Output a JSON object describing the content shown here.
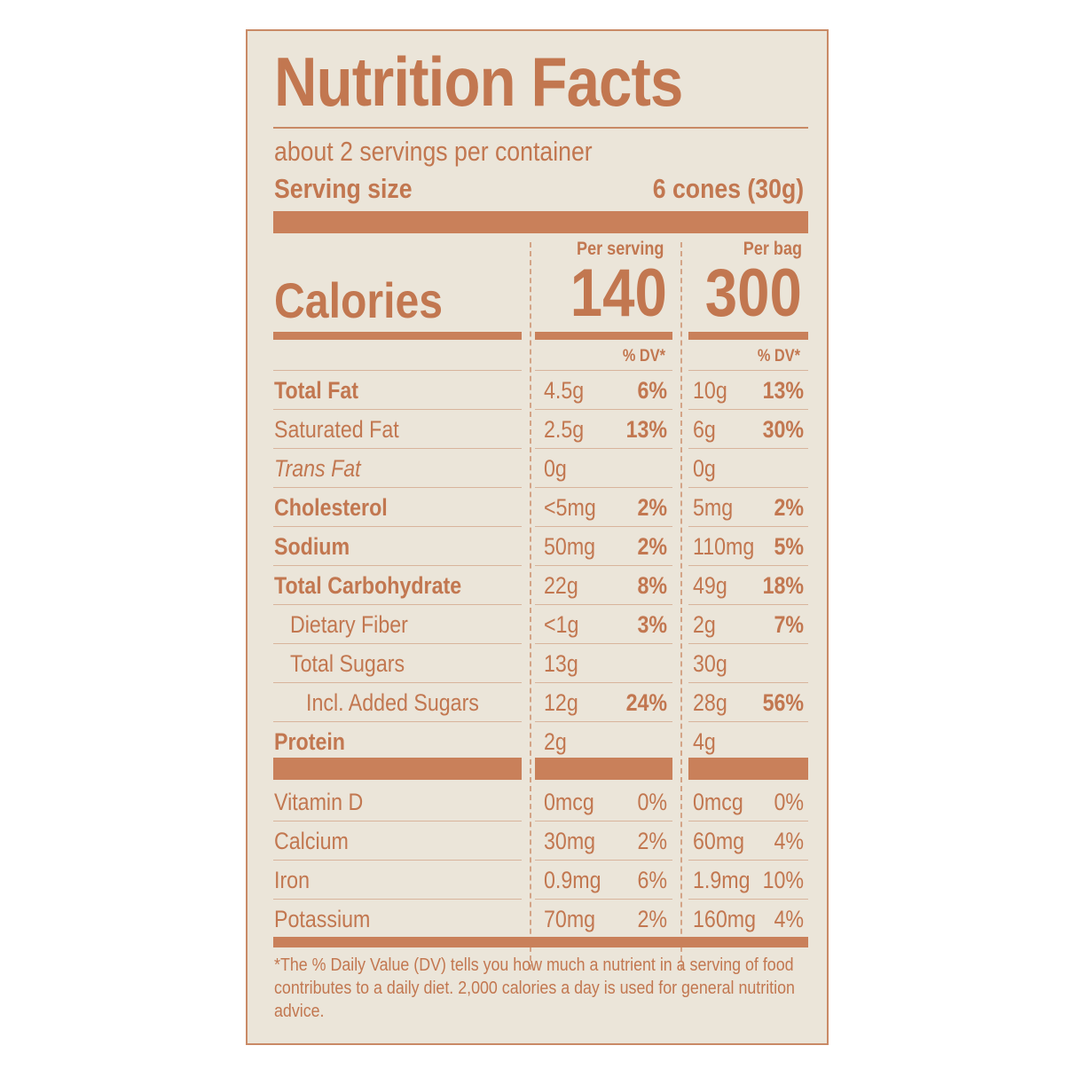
{
  "label": {
    "title": "Nutrition Facts",
    "servings_per_container": "about 2 servings per container",
    "serving_size_label": "Serving size",
    "serving_size_value": "6 cones (30g)",
    "calories_label": "Calories",
    "per_serving_header": "Per serving",
    "per_bag_header": "Per bag",
    "calories_per_serving": "140",
    "calories_per_bag": "300",
    "dv_header": "% DV*",
    "nutrients": [
      {
        "name": "Total Fat",
        "bold": true,
        "italic": false,
        "indent": 0,
        "serving_amount": "4.5g",
        "serving_dv": "6%",
        "bag_amount": "10g",
        "bag_dv": "13%"
      },
      {
        "name": "Saturated Fat",
        "bold": false,
        "italic": false,
        "indent": 0,
        "serving_amount": "2.5g",
        "serving_dv": "13%",
        "bag_amount": "6g",
        "bag_dv": "30%"
      },
      {
        "name": "Trans Fat",
        "bold": false,
        "italic": true,
        "indent": 0,
        "serving_amount": "0g",
        "serving_dv": "",
        "bag_amount": "0g",
        "bag_dv": ""
      },
      {
        "name": "Cholesterol",
        "bold": true,
        "italic": false,
        "indent": 0,
        "serving_amount": "<5mg",
        "serving_dv": "2%",
        "bag_amount": "5mg",
        "bag_dv": "2%"
      },
      {
        "name": "Sodium",
        "bold": true,
        "italic": false,
        "indent": 0,
        "serving_amount": "50mg",
        "serving_dv": "2%",
        "bag_amount": "110mg",
        "bag_dv": "5%"
      },
      {
        "name": "Total Carbohydrate",
        "bold": true,
        "italic": false,
        "indent": 0,
        "serving_amount": "22g",
        "serving_dv": "8%",
        "bag_amount": "49g",
        "bag_dv": "18%"
      },
      {
        "name": "Dietary Fiber",
        "bold": false,
        "italic": false,
        "indent": 1,
        "serving_amount": "<1g",
        "serving_dv": "3%",
        "bag_amount": "2g",
        "bag_dv": "7%"
      },
      {
        "name": "Total Sugars",
        "bold": false,
        "italic": false,
        "indent": 1,
        "serving_amount": "13g",
        "serving_dv": "",
        "bag_amount": "30g",
        "bag_dv": ""
      },
      {
        "name": "Incl. Added Sugars",
        "bold": false,
        "italic": false,
        "indent": 2,
        "serving_amount": "12g",
        "serving_dv": "24%",
        "bag_amount": "28g",
        "bag_dv": "56%"
      },
      {
        "name": "Protein",
        "bold": true,
        "italic": false,
        "indent": 0,
        "serving_amount": "2g",
        "serving_dv": "",
        "bag_amount": "4g",
        "bag_dv": ""
      }
    ],
    "vitamins": [
      {
        "name": "Vitamin D",
        "serving_amount": "0mcg",
        "serving_dv": "0%",
        "bag_amount": "0mcg",
        "bag_dv": "0%"
      },
      {
        "name": "Calcium",
        "serving_amount": "30mg",
        "serving_dv": "2%",
        "bag_amount": "60mg",
        "bag_dv": "4%"
      },
      {
        "name": "Iron",
        "serving_amount": "0.9mg",
        "serving_dv": "6%",
        "bag_amount": "1.9mg",
        "bag_dv": "10%"
      },
      {
        "name": "Potassium",
        "serving_amount": "70mg",
        "serving_dv": "2%",
        "bag_amount": "160mg",
        "bag_dv": "4%"
      }
    ],
    "footnote": "*The % Daily Value (DV) tells you how much a nutrient in a serving of food contributes to a daily diet. 2,000 calories a day is used for general nutrition advice."
  },
  "colors": {
    "ink": "#c27750",
    "background": "#ebe5d9"
  }
}
